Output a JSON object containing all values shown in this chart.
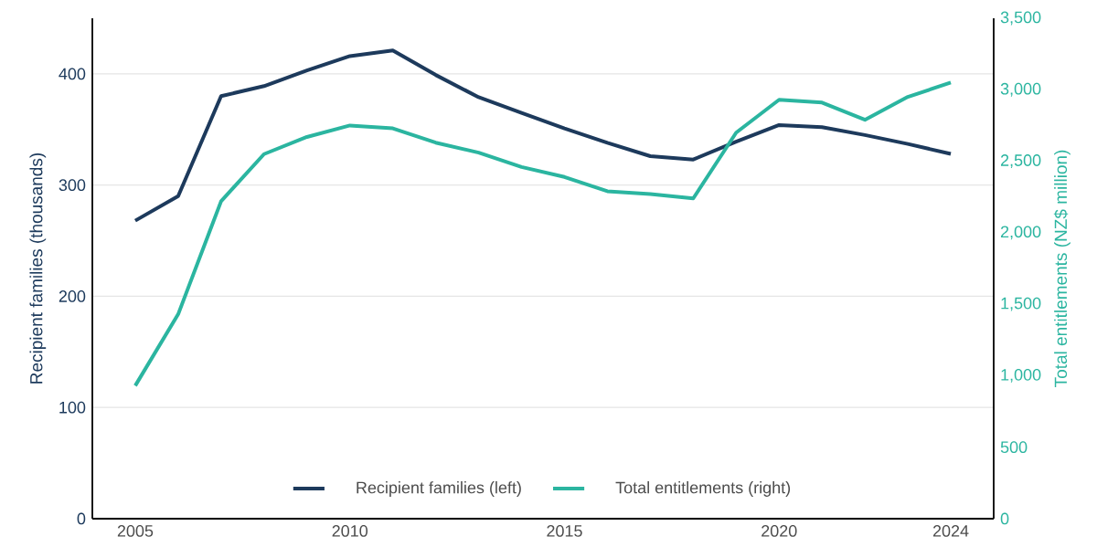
{
  "chart_data": {
    "type": "line",
    "ylabel": "Recipient families (thousands)",
    "y2label": "Total entitlements (NZ$ million)",
    "x": [
      2005,
      2006,
      2007,
      2008,
      2009,
      2010,
      2011,
      2012,
      2013,
      2014,
      2015,
      2016,
      2017,
      2018,
      2019,
      2020,
      2021,
      2022,
      2023,
      2024
    ],
    "xlim": [
      2004,
      2025
    ],
    "xticks": [
      2005,
      2010,
      2015,
      2020,
      2024
    ],
    "ylim": [
      0,
      450
    ],
    "yticks": [
      0,
      100,
      200,
      300,
      400
    ],
    "y2lim": [
      0,
      3500
    ],
    "y2ticks": [
      0,
      500,
      {
        "value": 1000,
        "label": "1,000"
      },
      {
        "value": 1500,
        "label": "1,500"
      },
      {
        "value": 2000,
        "label": "2,000"
      },
      {
        "value": 2500,
        "label": "2,500"
      },
      {
        "value": 3000,
        "label": "3,000"
      },
      {
        "value": 3500,
        "label": "3,500"
      }
    ],
    "grid": "y",
    "legend": "bottom",
    "series": [
      {
        "name": "Recipient families (left)",
        "color": "#1d3a5c",
        "values": [
          268,
          290,
          380,
          389,
          403,
          416,
          421,
          399,
          379,
          365,
          351,
          338,
          326,
          323,
          339,
          354,
          352,
          345,
          337,
          328
        ]
      },
      {
        "name": "Total entitlements (right)",
        "color": "#2bb5a0",
        "axis": "y2",
        "values": [
          930,
          1430,
          2220,
          2550,
          2670,
          2750,
          2730,
          2630,
          2560,
          2460,
          2390,
          2290,
          2270,
          2240,
          2700,
          2930,
          2910,
          2790,
          2950,
          3050
        ]
      }
    ]
  }
}
